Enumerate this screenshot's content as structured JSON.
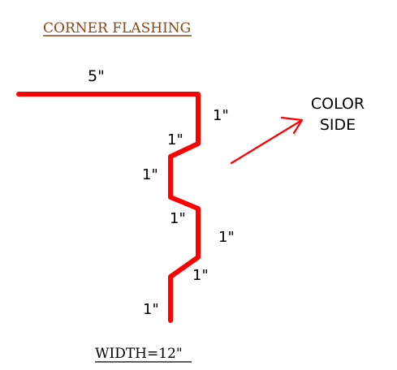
{
  "title": {
    "text": "CORNER FLASHING",
    "color": "#8b4513"
  },
  "profile": {
    "color": "#ff0000",
    "leg_top": "5\"",
    "segments": [
      "1\"",
      "1\"",
      "1\"",
      "1\"",
      "1\"",
      "1\"",
      "1\""
    ]
  },
  "color_side": {
    "line1": "COLOR",
    "line2": "SIDE",
    "arrow_color": "#ff0000"
  },
  "width_label": {
    "text": "WIDTH=12\""
  }
}
